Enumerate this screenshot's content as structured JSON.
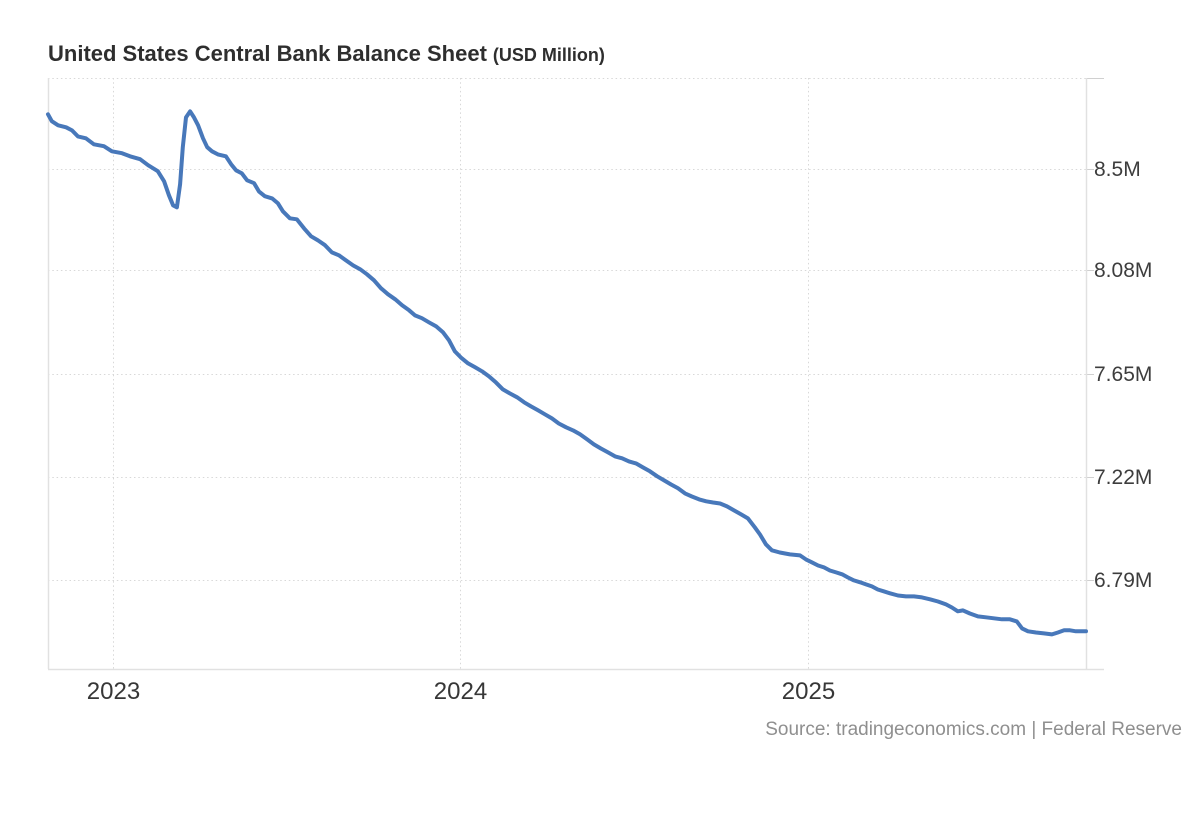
{
  "title": {
    "main": "United States Central Bank Balance Sheet",
    "unit": "(USD Million)"
  },
  "source_note": "Source: tradingeconomics.com | Federal Reserve",
  "colors": {
    "line": "#4878ba",
    "grid_dots": "#d8d8d8",
    "border": "#e1e1e1",
    "tick_mark": "#d0d0d0",
    "background": "#ffffff"
  },
  "chart_data": {
    "type": "line",
    "title": "United States Central Bank Balance Sheet",
    "unit": "USD Million",
    "x_format": "decimal_year",
    "grid": true,
    "legend": false,
    "xlim": [
      2022.813,
      2025.8
    ],
    "ylim": [
      6.42,
      8.88
    ],
    "yticks": [
      {
        "value": 8.5,
        "label": "8.5M"
      },
      {
        "value": 8.08,
        "label": "8.08M"
      },
      {
        "value": 7.65,
        "label": "7.65M"
      },
      {
        "value": 7.22,
        "label": "7.22M"
      },
      {
        "value": 6.79,
        "label": "6.79M"
      }
    ],
    "xticks": [
      {
        "value": 2023,
        "label": "2023"
      },
      {
        "value": 2024,
        "label": "2024"
      },
      {
        "value": 2025,
        "label": "2025"
      }
    ],
    "series": [
      {
        "name": "United States Central Bank Balance Sheet",
        "points": [
          [
            2022.813,
            8.729
          ],
          [
            2022.824,
            8.7
          ],
          [
            2022.842,
            8.683
          ],
          [
            2022.865,
            8.675
          ],
          [
            2022.882,
            8.662
          ],
          [
            2022.899,
            8.637
          ],
          [
            2022.922,
            8.629
          ],
          [
            2022.945,
            8.604
          ],
          [
            2022.974,
            8.596
          ],
          [
            2022.997,
            8.575
          ],
          [
            2023.026,
            8.567
          ],
          [
            2023.049,
            8.554
          ],
          [
            2023.078,
            8.542
          ],
          [
            2023.101,
            8.517
          ],
          [
            2023.129,
            8.492
          ],
          [
            2023.147,
            8.45
          ],
          [
            2023.161,
            8.392
          ],
          [
            2023.173,
            8.35
          ],
          [
            2023.184,
            8.342
          ],
          [
            2023.193,
            8.438
          ],
          [
            2023.201,
            8.592
          ],
          [
            2023.21,
            8.716
          ],
          [
            2023.222,
            8.741
          ],
          [
            2023.233,
            8.716
          ],
          [
            2023.245,
            8.683
          ],
          [
            2023.259,
            8.629
          ],
          [
            2023.271,
            8.592
          ],
          [
            2023.285,
            8.575
          ],
          [
            2023.302,
            8.562
          ],
          [
            2023.325,
            8.554
          ],
          [
            2023.34,
            8.521
          ],
          [
            2023.354,
            8.496
          ],
          [
            2023.371,
            8.483
          ],
          [
            2023.386,
            8.454
          ],
          [
            2023.406,
            8.442
          ],
          [
            2023.42,
            8.408
          ],
          [
            2023.437,
            8.388
          ],
          [
            2023.458,
            8.379
          ],
          [
            2023.475,
            8.358
          ],
          [
            2023.489,
            8.325
          ],
          [
            2023.509,
            8.296
          ],
          [
            2023.529,
            8.292
          ],
          [
            2023.55,
            8.254
          ],
          [
            2023.57,
            8.221
          ],
          [
            2023.59,
            8.204
          ],
          [
            2023.61,
            8.184
          ],
          [
            2023.63,
            8.154
          ],
          [
            2023.65,
            8.142
          ],
          [
            2023.67,
            8.121
          ],
          [
            2023.691,
            8.1
          ],
          [
            2023.711,
            8.084
          ],
          [
            2023.731,
            8.063
          ],
          [
            2023.751,
            8.038
          ],
          [
            2023.771,
            8.005
          ],
          [
            2023.791,
            7.98
          ],
          [
            2023.812,
            7.959
          ],
          [
            2023.832,
            7.934
          ],
          [
            2023.852,
            7.913
          ],
          [
            2023.869,
            7.892
          ],
          [
            2023.889,
            7.88
          ],
          [
            2023.909,
            7.863
          ],
          [
            2023.93,
            7.846
          ],
          [
            2023.95,
            7.821
          ],
          [
            2023.967,
            7.788
          ],
          [
            2023.984,
            7.742
          ],
          [
            2024.001,
            7.717
          ],
          [
            2024.022,
            7.692
          ],
          [
            2024.042,
            7.676
          ],
          [
            2024.062,
            7.659
          ],
          [
            2024.082,
            7.638
          ],
          [
            2024.102,
            7.613
          ],
          [
            2024.122,
            7.584
          ],
          [
            2024.142,
            7.567
          ],
          [
            2024.163,
            7.551
          ],
          [
            2024.183,
            7.53
          ],
          [
            2024.203,
            7.513
          ],
          [
            2024.223,
            7.497
          ],
          [
            2024.243,
            7.48
          ],
          [
            2024.263,
            7.463
          ],
          [
            2024.283,
            7.442
          ],
          [
            2024.304,
            7.426
          ],
          [
            2024.324,
            7.413
          ],
          [
            2024.344,
            7.397
          ],
          [
            2024.364,
            7.376
          ],
          [
            2024.384,
            7.355
          ],
          [
            2024.404,
            7.338
          ],
          [
            2024.424,
            7.322
          ],
          [
            2024.445,
            7.305
          ],
          [
            2024.465,
            7.297
          ],
          [
            2024.485,
            7.284
          ],
          [
            2024.505,
            7.276
          ],
          [
            2024.525,
            7.259
          ],
          [
            2024.545,
            7.243
          ],
          [
            2024.566,
            7.222
          ],
          [
            2024.586,
            7.205
          ],
          [
            2024.606,
            7.188
          ],
          [
            2024.626,
            7.172
          ],
          [
            2024.646,
            7.151
          ],
          [
            2024.666,
            7.138
          ],
          [
            2024.687,
            7.126
          ],
          [
            2024.707,
            7.118
          ],
          [
            2024.727,
            7.113
          ],
          [
            2024.747,
            7.109
          ],
          [
            2024.767,
            7.097
          ],
          [
            2024.787,
            7.08
          ],
          [
            2024.807,
            7.064
          ],
          [
            2024.827,
            7.047
          ],
          [
            2024.847,
            7.01
          ],
          [
            2024.862,
            6.98
          ],
          [
            2024.879,
            6.939
          ],
          [
            2024.896,
            6.914
          ],
          [
            2024.919,
            6.905
          ],
          [
            2024.948,
            6.897
          ],
          [
            2024.977,
            6.893
          ],
          [
            2024.994,
            6.876
          ],
          [
            2025.011,
            6.864
          ],
          [
            2025.029,
            6.851
          ],
          [
            2025.046,
            6.843
          ],
          [
            2025.063,
            6.83
          ],
          [
            2025.081,
            6.822
          ],
          [
            2025.098,
            6.814
          ],
          [
            2025.115,
            6.801
          ],
          [
            2025.132,
            6.789
          ],
          [
            2025.15,
            6.781
          ],
          [
            2025.167,
            6.772
          ],
          [
            2025.184,
            6.764
          ],
          [
            2025.201,
            6.751
          ],
          [
            2025.219,
            6.743
          ],
          [
            2025.236,
            6.735
          ],
          [
            2025.259,
            6.726
          ],
          [
            2025.282,
            6.722
          ],
          [
            2025.305,
            6.722
          ],
          [
            2025.328,
            6.718
          ],
          [
            2025.351,
            6.71
          ],
          [
            2025.374,
            6.701
          ],
          [
            2025.397,
            6.689
          ],
          [
            2025.414,
            6.676
          ],
          [
            2025.431,
            6.66
          ],
          [
            2025.446,
            6.664
          ],
          [
            2025.466,
            6.651
          ],
          [
            2025.489,
            6.639
          ],
          [
            2025.512,
            6.635
          ],
          [
            2025.535,
            6.631
          ],
          [
            2025.558,
            6.627
          ],
          [
            2025.581,
            6.627
          ],
          [
            2025.601,
            6.618
          ],
          [
            2025.616,
            6.589
          ],
          [
            2025.633,
            6.577
          ],
          [
            2025.656,
            6.572
          ],
          [
            2025.679,
            6.568
          ],
          [
            2025.702,
            6.564
          ],
          [
            2025.719,
            6.572
          ],
          [
            2025.737,
            6.581
          ],
          [
            2025.754,
            6.581
          ],
          [
            2025.771,
            6.577
          ],
          [
            2025.8,
            6.577
          ]
        ]
      }
    ]
  }
}
